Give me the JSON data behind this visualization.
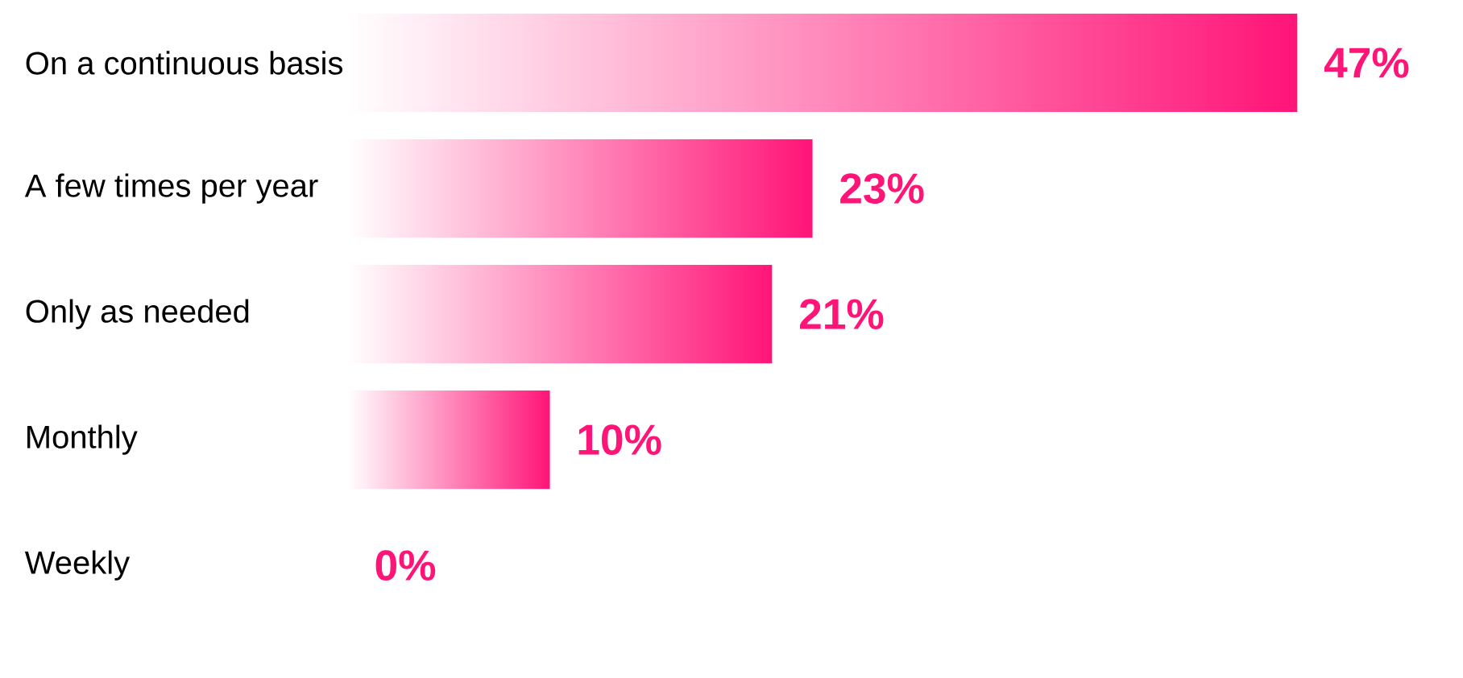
{
  "chart_data": {
    "type": "bar",
    "orientation": "horizontal",
    "categories": [
      "On a continuous basis",
      "A few times per year",
      "Only as needed",
      "Monthly",
      "Weekly"
    ],
    "values": [
      47,
      23,
      21,
      10,
      0
    ],
    "value_labels": [
      "47%",
      "23%",
      "21%",
      "10%",
      "0%"
    ],
    "color": "#ff1477"
  }
}
